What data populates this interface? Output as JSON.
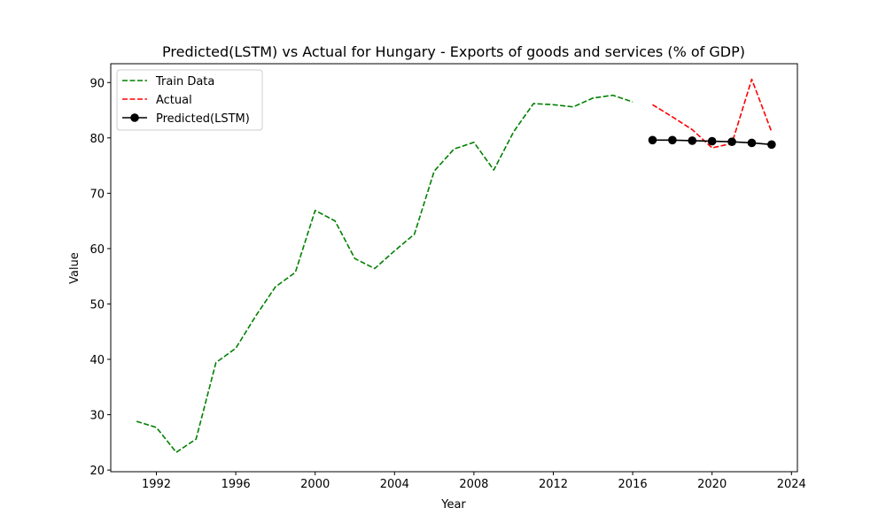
{
  "chart_data": {
    "type": "line",
    "title": "Predicted(LSTM) vs Actual for Hungary - Exports of goods and services (% of GDP)",
    "xlabel": "Year",
    "ylabel": "Value",
    "xlim": [
      1989.7,
      2024.3
    ],
    "ylim": [
      19.7,
      93.4
    ],
    "xticks": [
      1992,
      1996,
      2000,
      2004,
      2008,
      2012,
      2016,
      2020,
      2024
    ],
    "yticks": [
      20,
      30,
      40,
      50,
      60,
      70,
      80,
      90
    ],
    "grid": false,
    "legend_position": "upper left",
    "series": [
      {
        "name": "Train Data",
        "color": "#008000",
        "style": "dashed",
        "x": [
          1991,
          1992,
          1993,
          1994,
          1995,
          1996,
          1997,
          1998,
          1999,
          2000,
          2001,
          2002,
          2003,
          2004,
          2005,
          2006,
          2007,
          2008,
          2009,
          2010,
          2011,
          2012,
          2013,
          2014,
          2015,
          2016
        ],
        "y": [
          28.8,
          27.7,
          23.2,
          25.6,
          39.4,
          42.0,
          47.8,
          53.1,
          55.7,
          66.9,
          65.0,
          58.2,
          56.4,
          59.6,
          62.6,
          74.0,
          78.0,
          79.2,
          74.2,
          81.1,
          86.2,
          86.0,
          85.6,
          87.2,
          87.7,
          86.5
        ]
      },
      {
        "name": "Actual",
        "color": "#ff0000",
        "style": "dashed",
        "x": [
          2017,
          2018,
          2019,
          2020,
          2021,
          2022,
          2023
        ],
        "y": [
          86.0,
          83.8,
          81.5,
          78.2,
          79.0,
          90.6,
          81.1
        ]
      },
      {
        "name": "Predicted(LSTM)",
        "color": "#000000",
        "style": "solid",
        "marker": "circle",
        "x": [
          2017,
          2018,
          2019,
          2020,
          2021,
          2022,
          2023
        ],
        "y": [
          79.6,
          79.6,
          79.5,
          79.4,
          79.3,
          79.1,
          78.8
        ]
      }
    ]
  }
}
